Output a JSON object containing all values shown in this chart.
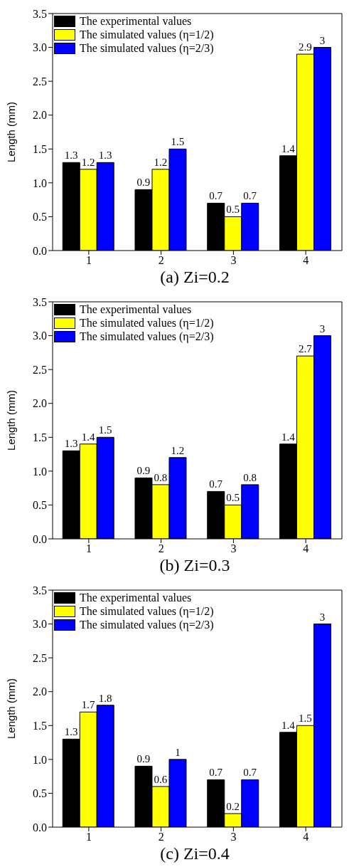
{
  "chart_data": [
    {
      "type": "bar",
      "title": "(a) Zi=0.2",
      "ylabel": "Length (mm)",
      "categories": [
        "1",
        "2",
        "3",
        "4"
      ],
      "legend": "top left",
      "data_labels": true,
      "ylim": [
        0,
        3.5
      ],
      "yticks": [
        {
          "value": 0,
          "label": "0.0"
        },
        {
          "value": 0.5,
          "label": "0.5"
        },
        {
          "value": 1,
          "label": "1.0"
        },
        {
          "value": 1.5,
          "label": "1.5"
        },
        {
          "value": 2,
          "label": "2.0"
        },
        {
          "value": 2.5,
          "label": "2.5"
        },
        {
          "value": 3,
          "label": "3.0"
        },
        {
          "value": 3.5,
          "label": "3.5"
        }
      ],
      "series": [
        {
          "name": "The experimental values",
          "color": "#000000",
          "values": [
            1.3,
            0.9,
            0.7,
            1.4
          ]
        },
        {
          "name": "The simulated values (η=1/2)",
          "color": "#ffff00",
          "values": [
            1.2,
            1.2,
            0.5,
            2.9
          ]
        },
        {
          "name": "The simulated values (η=2/3)",
          "color": "#0000ff",
          "values": [
            1.3,
            1.5,
            0.7,
            3
          ]
        }
      ]
    },
    {
      "type": "bar",
      "title": "(b) Zi=0.3",
      "ylabel": "Length (mm)",
      "categories": [
        "1",
        "2",
        "3",
        "4"
      ],
      "legend": "top left",
      "data_labels": true,
      "ylim": [
        0,
        3.5
      ],
      "yticks": [
        {
          "value": 0,
          "label": "0.0"
        },
        {
          "value": 0.5,
          "label": "0.5"
        },
        {
          "value": 1,
          "label": "1.0"
        },
        {
          "value": 1.5,
          "label": "1.5"
        },
        {
          "value": 2,
          "label": "2.0"
        },
        {
          "value": 2.5,
          "label": "2.5"
        },
        {
          "value": 3,
          "label": "3.0"
        },
        {
          "value": 3.5,
          "label": "3.5"
        }
      ],
      "series": [
        {
          "name": "The experimental values",
          "color": "#000000",
          "values": [
            1.3,
            0.9,
            0.7,
            1.4
          ]
        },
        {
          "name": "The simulated values (η=1/2)",
          "color": "#ffff00",
          "values": [
            1.4,
            0.8,
            0.5,
            2.7
          ]
        },
        {
          "name": "The simulated values (η=2/3)",
          "color": "#0000ff",
          "values": [
            1.5,
            1.2,
            0.8,
            3
          ]
        }
      ]
    },
    {
      "type": "bar",
      "title": "(c) Zi=0.4",
      "ylabel": "Length (mm)",
      "categories": [
        "1",
        "2",
        "3",
        "4"
      ],
      "legend": "top left",
      "data_labels": true,
      "ylim": [
        0,
        3.5
      ],
      "yticks": [
        {
          "value": 0,
          "label": "0.0"
        },
        {
          "value": 0.5,
          "label": "0.5"
        },
        {
          "value": 1,
          "label": "1.0"
        },
        {
          "value": 1.5,
          "label": "1.5"
        },
        {
          "value": 2,
          "label": "2.0"
        },
        {
          "value": 2.5,
          "label": "2.5"
        },
        {
          "value": 3,
          "label": "3.0"
        },
        {
          "value": 3.5,
          "label": "3.5"
        }
      ],
      "series": [
        {
          "name": "The experimental values",
          "color": "#000000",
          "values": [
            1.3,
            0.9,
            0.7,
            1.4
          ]
        },
        {
          "name": "The simulated values (η=1/2)",
          "color": "#ffff00",
          "values": [
            1.7,
            0.6,
            0.2,
            1.5
          ]
        },
        {
          "name": "The simulated values (η=2/3)",
          "color": "#0000ff",
          "values": [
            1.8,
            1,
            0.7,
            3
          ]
        }
      ]
    }
  ]
}
